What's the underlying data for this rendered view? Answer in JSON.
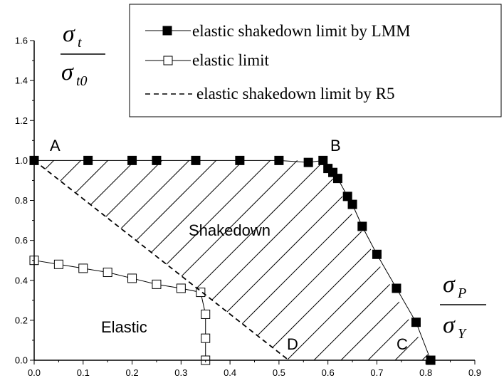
{
  "chart_data": {
    "type": "line",
    "title": "",
    "x_ticks": [
      "0.0",
      "0.1",
      "0.2",
      "0.3",
      "0.4",
      "0.5",
      "0.6",
      "0.7",
      "0.8",
      "0.9"
    ],
    "y_ticks": [
      "0.0",
      "0.2",
      "0.4",
      "0.6",
      "0.8",
      "1.0",
      "1.2",
      "1.4",
      "1.6"
    ],
    "xlim": [
      0,
      0.9
    ],
    "ylim": [
      0,
      1.6
    ],
    "grid": false,
    "legend_position": "top-right",
    "xlabel": {
      "num": "σ",
      "num_sub": "P",
      "den": "σ",
      "den_sub": "Y"
    },
    "ylabel": {
      "num": "σ",
      "num_sub": "t",
      "den": "σ",
      "den_sub": "t0"
    },
    "series": [
      {
        "name": "elastic shakedown limit by LMM",
        "marker": "filled-square",
        "x": [
          0.0,
          0.11,
          0.2,
          0.25,
          0.33,
          0.42,
          0.5,
          0.56,
          0.59,
          0.6,
          0.61,
          0.62,
          0.64,
          0.65,
          0.67,
          0.7,
          0.74,
          0.78,
          0.81
        ],
        "y": [
          1.0,
          1.0,
          1.0,
          1.0,
          1.0,
          1.0,
          1.0,
          0.99,
          1.0,
          0.96,
          0.94,
          0.91,
          0.82,
          0.78,
          0.67,
          0.53,
          0.36,
          0.19,
          0.0
        ]
      },
      {
        "name": "elastic limit",
        "marker": "open-square",
        "x": [
          0.0,
          0.05,
          0.1,
          0.15,
          0.2,
          0.25,
          0.3,
          0.34,
          0.35,
          0.35,
          0.35
        ],
        "y": [
          0.5,
          0.48,
          0.46,
          0.44,
          0.41,
          0.38,
          0.36,
          0.34,
          0.23,
          0.11,
          0.0
        ]
      },
      {
        "name": "elastic shakedown limit by R5",
        "marker": "dashed",
        "x": [
          0.0,
          0.52
        ],
        "y": [
          1.0,
          0.0
        ]
      }
    ],
    "annotations": {
      "point_a": "A",
      "point_b": "B",
      "point_c": "C",
      "point_d": "D",
      "shakedown": "Shakedown",
      "elastic": "Elastic"
    },
    "hatch_region": {
      "boundary": [
        [
          0.0,
          1.0
        ],
        [
          0.59,
          1.0
        ],
        [
          0.81,
          0.0
        ],
        [
          0.52,
          0.0
        ]
      ]
    }
  }
}
